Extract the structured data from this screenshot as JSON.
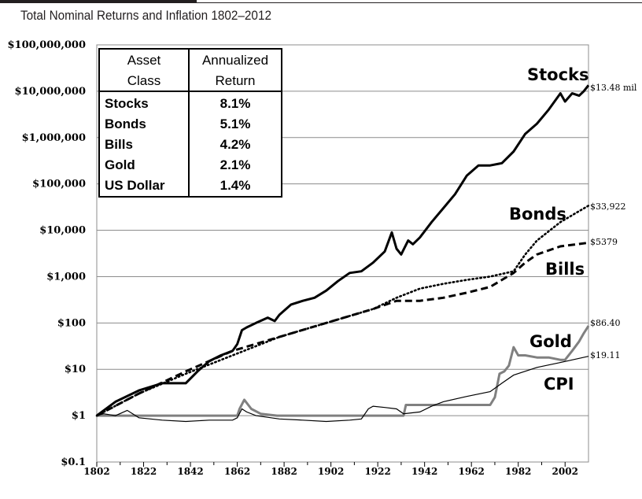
{
  "caption": "Total Nominal Returns and Inflation 1802–2012",
  "chart_data": {
    "type": "line",
    "scale": "log",
    "xlim": [
      1802,
      2012
    ],
    "ylim": [
      0.1,
      100000000
    ],
    "x_ticks": [
      "1802",
      "1822",
      "1842",
      "1862",
      "1882",
      "1902",
      "1922",
      "1942",
      "1962",
      "1982",
      "2002"
    ],
    "x_tick_values": [
      1802,
      1822,
      1842,
      1862,
      1882,
      1902,
      1922,
      1942,
      1962,
      1982,
      2002
    ],
    "y_ticks": [
      "$100,000,000",
      "$10,000,000",
      "$1,000,000",
      "$100,000",
      "$10,000",
      "$1,000",
      "$100",
      "$10",
      "$1",
      "$0.1"
    ],
    "y_tick_values": [
      100000000,
      10000000,
      1000000,
      100000,
      10000,
      1000,
      100,
      10,
      1,
      0.1
    ],
    "series": [
      {
        "name": "Stocks",
        "label": "Stocks",
        "end_label": "$13.48 mil",
        "color": "#000000",
        "style": "solid-thick",
        "x": [
          1802,
          1810,
          1820,
          1830,
          1840,
          1845,
          1850,
          1855,
          1860,
          1862,
          1864,
          1866,
          1870,
          1875,
          1878,
          1880,
          1885,
          1890,
          1895,
          1900,
          1905,
          1910,
          1915,
          1920,
          1925,
          1928,
          1930,
          1932,
          1935,
          1937,
          1940,
          1945,
          1950,
          1955,
          1960,
          1965,
          1970,
          1975,
          1980,
          1985,
          1990,
          1995,
          2000,
          2002,
          2005,
          2008,
          2010,
          2012
        ],
        "y": [
          1,
          2,
          3.5,
          5,
          5,
          9,
          15,
          20,
          25,
          35,
          70,
          80,
          100,
          130,
          110,
          150,
          250,
          300,
          350,
          500,
          800,
          1200,
          1300,
          2000,
          3500,
          9000,
          4000,
          3000,
          6000,
          5000,
          7000,
          15000,
          30000,
          60000,
          150000,
          250000,
          250000,
          280000,
          500000,
          1200000,
          2000000,
          4000000,
          9000000,
          6000000,
          9000000,
          8000000,
          10000000,
          13480000
        ]
      },
      {
        "name": "Bonds",
        "label": "Bonds",
        "end_label": "$33,922",
        "color": "#000000",
        "style": "dotted",
        "x": [
          1802,
          1820,
          1840,
          1860,
          1880,
          1900,
          1920,
          1930,
          1940,
          1950,
          1960,
          1970,
          1980,
          1985,
          1990,
          2000,
          2012
        ],
        "y": [
          1,
          3,
          8,
          20,
          50,
          100,
          200,
          350,
          550,
          700,
          850,
          1000,
          1300,
          3000,
          6000,
          15000,
          33922
        ]
      },
      {
        "name": "Bills",
        "label": "Bills",
        "end_label": "$5379",
        "color": "#000000",
        "style": "dashed",
        "x": [
          1802,
          1820,
          1840,
          1860,
          1880,
          1900,
          1920,
          1930,
          1940,
          1950,
          1960,
          1970,
          1980,
          1985,
          1990,
          2000,
          2012
        ],
        "y": [
          1,
          3,
          9,
          25,
          50,
          100,
          200,
          300,
          300,
          350,
          450,
          600,
          1200,
          2000,
          3000,
          4500,
          5379
        ]
      },
      {
        "name": "Gold",
        "label": "Gold",
        "end_label": "$86.40",
        "color": "#808080",
        "style": "solid-gray",
        "x": [
          1802,
          1862,
          1863,
          1865,
          1868,
          1872,
          1879,
          1933,
          1934,
          1970,
          1972,
          1974,
          1976,
          1978,
          1980,
          1982,
          1985,
          1990,
          1995,
          2000,
          2002,
          2005,
          2008,
          2010,
          2012
        ],
        "y": [
          1,
          1,
          1.4,
          2.2,
          1.4,
          1.1,
          1,
          1,
          1.7,
          1.7,
          2.5,
          8,
          9,
          12,
          30,
          20,
          20,
          18,
          18,
          16,
          16,
          25,
          40,
          60,
          86.4
        ]
      },
      {
        "name": "CPI",
        "label": "CPI",
        "end_label": "$19.11",
        "color": "#000000",
        "style": "solid-thin",
        "x": [
          1802,
          1805,
          1810,
          1815,
          1820,
          1830,
          1840,
          1850,
          1860,
          1862,
          1864,
          1866,
          1870,
          1880,
          1890,
          1900,
          1910,
          1915,
          1918,
          1920,
          1925,
          1930,
          1933,
          1940,
          1945,
          1950,
          1960,
          1970,
          1975,
          1980,
          1990,
          2000,
          2012
        ],
        "y": [
          1,
          1.1,
          1,
          1.3,
          0.9,
          0.8,
          0.75,
          0.8,
          0.8,
          0.9,
          1.4,
          1.2,
          1,
          0.85,
          0.8,
          0.75,
          0.8,
          0.85,
          1.4,
          1.6,
          1.5,
          1.4,
          1.1,
          1.2,
          1.6,
          2,
          2.6,
          3.3,
          5,
          7.5,
          11,
          14,
          19.11
        ]
      }
    ]
  },
  "table": {
    "headers": [
      [
        "Asset",
        "Class"
      ],
      [
        "Annualized",
        "Return"
      ]
    ],
    "rows": [
      {
        "asset": "Stocks",
        "ret": "8.1%"
      },
      {
        "asset": "Bonds",
        "ret": "5.1%"
      },
      {
        "asset": "Bills",
        "ret": "4.2%"
      },
      {
        "asset": "Gold",
        "ret": "2.1%"
      },
      {
        "asset": "US Dollar",
        "ret": "1.4%"
      }
    ]
  }
}
